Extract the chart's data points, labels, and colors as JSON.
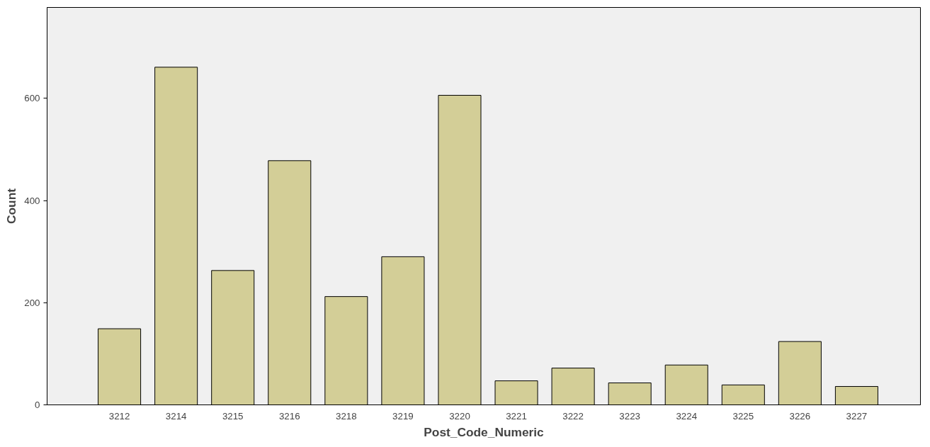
{
  "chart_data": {
    "type": "bar",
    "xlabel": "Post_Code_Numeric",
    "ylabel": "Count",
    "categories": [
      "3212",
      "3214",
      "3215",
      "3216",
      "3218",
      "3219",
      "3220",
      "3221",
      "3222",
      "3223",
      "3224",
      "3225",
      "3226",
      "3227"
    ],
    "values": [
      149,
      661,
      263,
      478,
      212,
      290,
      606,
      47,
      72,
      43,
      78,
      39,
      124,
      36
    ],
    "color": "#d3ce97",
    "ylim": [
      0,
      778
    ],
    "yticks": [
      0,
      200,
      400,
      600
    ],
    "grid": false
  }
}
